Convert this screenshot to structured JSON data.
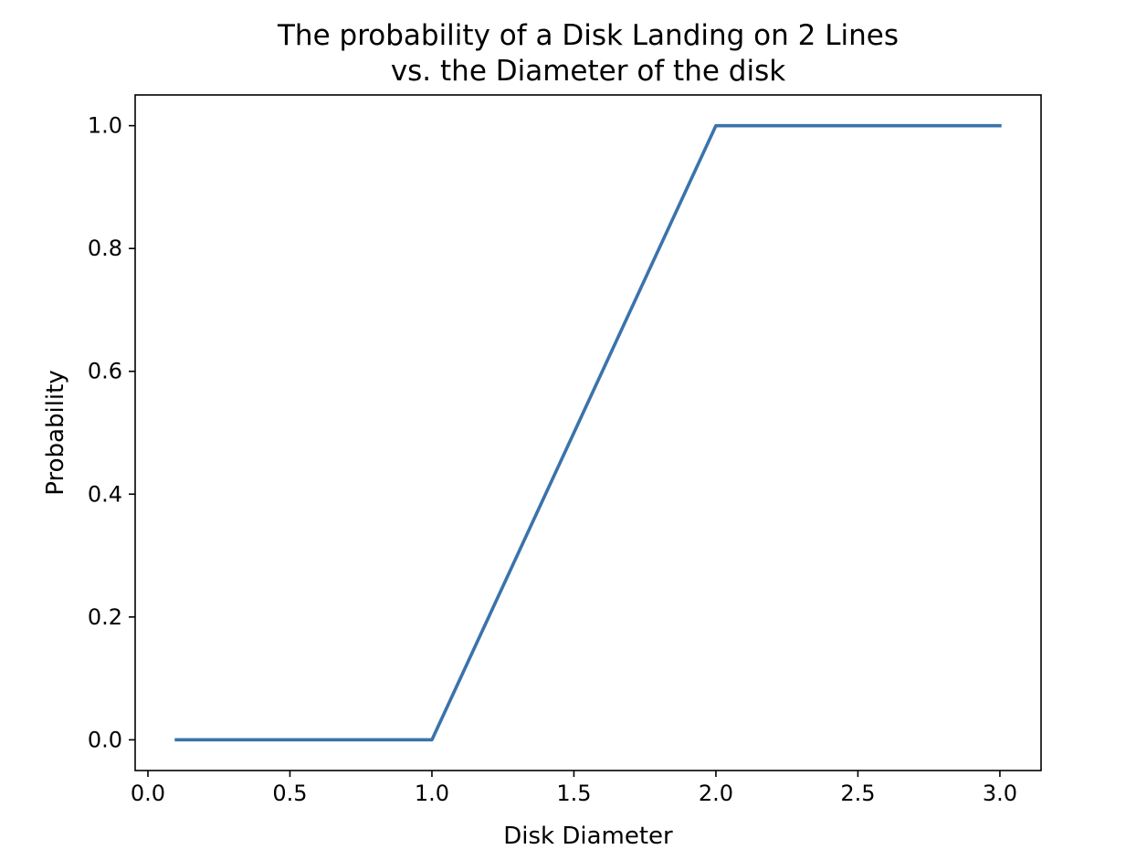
{
  "chart_data": {
    "type": "line",
    "title_lines": [
      "The probability of a Disk Landing on 2 Lines",
      "vs. the Diameter of the disk"
    ],
    "xlabel": "Disk Diameter",
    "ylabel": "Probability",
    "xlim": [
      -0.045,
      3.145
    ],
    "ylim": [
      -0.05,
      1.05
    ],
    "xticks": [
      {
        "value": 0.0,
        "label": "0.0"
      },
      {
        "value": 0.5,
        "label": "0.5"
      },
      {
        "value": 1.0,
        "label": "1.0"
      },
      {
        "value": 1.5,
        "label": "1.5"
      },
      {
        "value": 2.0,
        "label": "2.0"
      },
      {
        "value": 2.5,
        "label": "2.5"
      },
      {
        "value": 3.0,
        "label": "3.0"
      }
    ],
    "yticks": [
      {
        "value": 0.0,
        "label": "0.0"
      },
      {
        "value": 0.2,
        "label": "0.2"
      },
      {
        "value": 0.4,
        "label": "0.4"
      },
      {
        "value": 0.6,
        "label": "0.6"
      },
      {
        "value": 0.8,
        "label": "0.8"
      },
      {
        "value": 1.0,
        "label": "1.0"
      }
    ],
    "grid": false,
    "legend": "none",
    "series": [
      {
        "color": "#3b73ab",
        "x": [
          0.1,
          1.0,
          2.0,
          3.0
        ],
        "y": [
          0.0,
          0.0,
          1.0,
          1.0
        ]
      }
    ]
  }
}
